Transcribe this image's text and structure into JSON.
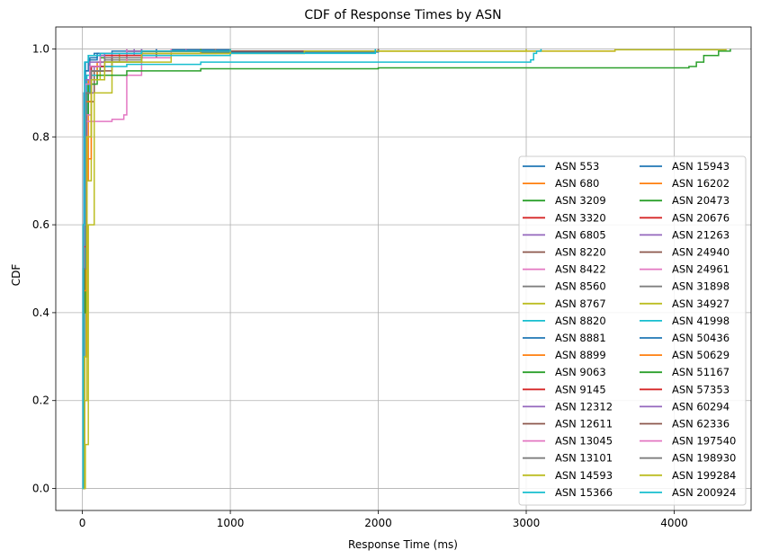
{
  "chart_data": {
    "type": "line",
    "title": "CDF of Response Times by ASN",
    "xlabel": "Response Time (ms)",
    "ylabel": "CDF",
    "xlim": [
      -180,
      4520
    ],
    "ylim": [
      -0.05,
      1.05
    ],
    "xticks": [
      0,
      1000,
      2000,
      3000,
      4000
    ],
    "xtick_labels": [
      "0",
      "1000",
      "2000",
      "3000",
      "4000"
    ],
    "yticks": [
      0.0,
      0.2,
      0.4,
      0.6,
      0.8,
      1.0
    ],
    "ytick_labels": [
      "0.0",
      "0.2",
      "0.4",
      "0.6",
      "0.8",
      "1.0"
    ],
    "grid": true,
    "legend_position": "lower-right",
    "legend_columns": 2,
    "series": [
      {
        "name": "ASN 553",
        "color": "#1f77b4",
        "x": [
          0,
          5,
          10,
          20,
          40,
          80,
          200,
          600,
          1000
        ],
        "y": [
          0,
          0.5,
          0.9,
          0.97,
          0.985,
          0.99,
          0.995,
          0.998,
          1.0
        ]
      },
      {
        "name": "ASN 680",
        "color": "#ff7f0e",
        "x": [
          0,
          10,
          25,
          40,
          80,
          200,
          500,
          3600
        ],
        "y": [
          0,
          0.3,
          0.7,
          0.93,
          0.96,
          0.985,
          0.995,
          1.0
        ]
      },
      {
        "name": "ASN 3209",
        "color": "#2ca02c",
        "x": [
          0,
          10,
          20,
          30,
          60,
          150,
          400,
          1000
        ],
        "y": [
          0,
          0.4,
          0.85,
          0.92,
          0.96,
          0.98,
          0.995,
          1.0
        ]
      },
      {
        "name": "ASN 3320",
        "color": "#d62728",
        "x": [
          0,
          8,
          20,
          50,
          120,
          300,
          900
        ],
        "y": [
          0,
          0.6,
          0.92,
          0.96,
          0.985,
          0.995,
          1.0
        ]
      },
      {
        "name": "ASN 6805",
        "color": "#9467bd",
        "x": [
          0,
          10,
          30,
          80,
          200,
          500
        ],
        "y": [
          0,
          0.5,
          0.9,
          0.96,
          0.99,
          1.0
        ]
      },
      {
        "name": "ASN 8220",
        "color": "#8c564b",
        "x": [
          0,
          8,
          20,
          60,
          150,
          400,
          1000
        ],
        "y": [
          0,
          0.6,
          0.9,
          0.96,
          0.985,
          0.995,
          1.0
        ]
      },
      {
        "name": "ASN 8422",
        "color": "#e377c2",
        "x": [
          0,
          10,
          25,
          60,
          150,
          400
        ],
        "y": [
          0,
          0.55,
          0.9,
          0.95,
          0.985,
          1.0
        ]
      },
      {
        "name": "ASN 8560",
        "color": "#7f7f7f",
        "x": [
          0,
          10,
          25,
          60,
          150,
          300,
          600
        ],
        "y": [
          0,
          0.5,
          0.9,
          0.95,
          0.98,
          0.99,
          1.0
        ]
      },
      {
        "name": "ASN 8767",
        "color": "#bcbd22",
        "x": [
          0,
          15,
          30,
          60,
          120,
          250,
          600
        ],
        "y": [
          0,
          0.2,
          0.7,
          0.93,
          0.97,
          0.99,
          1.0
        ]
      },
      {
        "name": "ASN 8820",
        "color": "#17becf",
        "x": [
          0,
          10,
          25,
          60,
          150,
          400
        ],
        "y": [
          0,
          0.5,
          0.93,
          0.96,
          0.99,
          1.0
        ]
      },
      {
        "name": "ASN 8881",
        "color": "#1f77b4",
        "x": [
          0,
          8,
          20,
          50,
          100,
          300
        ],
        "y": [
          0,
          0.6,
          0.95,
          0.98,
          0.99,
          1.0
        ]
      },
      {
        "name": "ASN 8899",
        "color": "#ff7f0e",
        "x": [
          0,
          15,
          30,
          60,
          150,
          400,
          1000
        ],
        "y": [
          0,
          0.3,
          0.75,
          0.93,
          0.97,
          0.99,
          1.0
        ]
      },
      {
        "name": "ASN 9063",
        "color": "#2ca02c",
        "x": [
          0,
          10,
          20,
          50,
          120,
          300,
          700
        ],
        "y": [
          0,
          0.5,
          0.9,
          0.95,
          0.98,
          0.995,
          1.0
        ]
      },
      {
        "name": "ASN 9145",
        "color": "#d62728",
        "x": [
          0,
          10,
          25,
          60,
          150,
          400,
          900
        ],
        "y": [
          0,
          0.5,
          0.88,
          0.95,
          0.98,
          0.995,
          1.0
        ]
      },
      {
        "name": "ASN 12312",
        "color": "#9467bd",
        "x": [
          0,
          8,
          20,
          60,
          150,
          350
        ],
        "y": [
          0,
          0.55,
          0.9,
          0.96,
          0.985,
          1.0
        ]
      },
      {
        "name": "ASN 12611",
        "color": "#8c564b",
        "x": [
          0,
          10,
          25,
          80,
          200,
          500,
          1000
        ],
        "y": [
          0,
          0.5,
          0.88,
          0.95,
          0.98,
          0.995,
          1.0
        ]
      },
      {
        "name": "ASN 13045",
        "color": "#e377c2",
        "x": [
          0,
          5,
          15,
          25,
          200,
          280,
          300,
          400,
          600
        ],
        "y": [
          0,
          0.5,
          0.8,
          0.835,
          0.84,
          0.85,
          0.94,
          0.98,
          1.0
        ]
      },
      {
        "name": "ASN 13101",
        "color": "#7f7f7f",
        "x": [
          0,
          10,
          25,
          60,
          150,
          400,
          900
        ],
        "y": [
          0,
          0.5,
          0.88,
          0.94,
          0.975,
          0.99,
          1.0
        ]
      },
      {
        "name": "ASN 14593",
        "color": "#bcbd22",
        "x": [
          0,
          20,
          40,
          80,
          200,
          600,
          1500,
          3600,
          4350
        ],
        "y": [
          0,
          0.1,
          0.6,
          0.9,
          0.97,
          0.99,
          0.995,
          0.998,
          1.0
        ]
      },
      {
        "name": "ASN 15366",
        "color": "#17becf",
        "x": [
          0,
          5,
          15,
          30,
          100,
          300,
          800,
          3030,
          3050,
          3070,
          3100
        ],
        "y": [
          0,
          0.3,
          0.85,
          0.94,
          0.96,
          0.965,
          0.97,
          0.975,
          0.99,
          0.995,
          1.0
        ]
      },
      {
        "name": "ASN 15943",
        "color": "#1f77b4",
        "x": [
          0,
          5,
          15,
          40,
          100,
          300,
          800,
          2000
        ],
        "y": [
          0,
          0.5,
          0.95,
          0.975,
          0.985,
          0.99,
          0.993,
          1.0
        ]
      },
      {
        "name": "ASN 16202",
        "color": "#ff7f0e",
        "x": [
          0,
          10,
          20,
          40,
          100,
          300,
          800
        ],
        "y": [
          0,
          0.4,
          0.85,
          0.93,
          0.97,
          0.99,
          1.0
        ]
      },
      {
        "name": "ASN 20473",
        "color": "#2ca02c",
        "x": [
          0,
          10,
          20,
          40,
          100,
          300,
          800,
          2000,
          4100,
          4150,
          4200,
          4300,
          4380
        ],
        "y": [
          0,
          0.4,
          0.85,
          0.92,
          0.94,
          0.95,
          0.955,
          0.957,
          0.96,
          0.97,
          0.985,
          0.995,
          1.0
        ]
      },
      {
        "name": "ASN 20676",
        "color": "#d62728",
        "x": [
          0,
          10,
          25,
          60,
          150,
          400,
          1000
        ],
        "y": [
          0,
          0.5,
          0.9,
          0.95,
          0.98,
          0.995,
          1.0
        ]
      },
      {
        "name": "ASN 21263",
        "color": "#9467bd",
        "x": [
          0,
          8,
          20,
          50,
          120,
          300,
          700
        ],
        "y": [
          0,
          0.55,
          0.9,
          0.96,
          0.985,
          0.995,
          1.0
        ]
      },
      {
        "name": "ASN 24940",
        "color": "#8c564b",
        "x": [
          0,
          10,
          25,
          60,
          150,
          400,
          1000,
          2000
        ],
        "y": [
          0,
          0.5,
          0.88,
          0.95,
          0.98,
          0.99,
          0.995,
          1.0
        ]
      },
      {
        "name": "ASN 24961",
        "color": "#e377c2",
        "x": [
          0,
          10,
          25,
          60,
          150,
          300,
          500
        ],
        "y": [
          0,
          0.5,
          0.85,
          0.93,
          0.97,
          0.99,
          1.0
        ]
      },
      {
        "name": "ASN 31898",
        "color": "#7f7f7f",
        "x": [
          0,
          10,
          25,
          60,
          150,
          400,
          1000
        ],
        "y": [
          0,
          0.5,
          0.9,
          0.95,
          0.98,
          0.995,
          1.0
        ]
      },
      {
        "name": "ASN 34927",
        "color": "#bcbd22",
        "x": [
          0,
          10,
          30,
          60,
          150,
          400,
          1500,
          3000
        ],
        "y": [
          0,
          0.3,
          0.8,
          0.93,
          0.97,
          0.99,
          0.995,
          1.0
        ]
      },
      {
        "name": "ASN 41998",
        "color": "#17becf",
        "x": [
          0,
          8,
          20,
          50,
          150,
          400,
          1000,
          1980
        ],
        "y": [
          0,
          0.5,
          0.9,
          0.95,
          0.97,
          0.985,
          0.99,
          1.0
        ]
      },
      {
        "name": "ASN 50436",
        "color": "#1f77b4",
        "x": [
          0,
          10,
          25,
          60,
          150,
          500
        ],
        "y": [
          0,
          0.5,
          0.9,
          0.96,
          0.99,
          1.0
        ]
      },
      {
        "name": "ASN 50629",
        "color": "#ff7f0e",
        "x": [
          0,
          10,
          25,
          60,
          150,
          400,
          1000
        ],
        "y": [
          0,
          0.45,
          0.88,
          0.95,
          0.98,
          0.995,
          1.0
        ]
      },
      {
        "name": "ASN 51167",
        "color": "#2ca02c",
        "x": [
          0,
          10,
          25,
          60,
          150,
          400,
          800
        ],
        "y": [
          0,
          0.5,
          0.9,
          0.95,
          0.98,
          0.995,
          1.0
        ]
      },
      {
        "name": "ASN 57353",
        "color": "#d62728",
        "x": [
          0,
          10,
          25,
          60,
          150,
          400,
          900
        ],
        "y": [
          0,
          0.55,
          0.9,
          0.96,
          0.985,
          0.995,
          1.0
        ]
      },
      {
        "name": "ASN 60294",
        "color": "#9467bd",
        "x": [
          0,
          8,
          20,
          50,
          150,
          400
        ],
        "y": [
          0,
          0.6,
          0.93,
          0.97,
          0.99,
          1.0
        ]
      },
      {
        "name": "ASN 62336",
        "color": "#8c564b",
        "x": [
          0,
          10,
          25,
          60,
          150,
          400,
          1000
        ],
        "y": [
          0,
          0.5,
          0.9,
          0.95,
          0.98,
          0.995,
          1.0
        ]
      },
      {
        "name": "ASN 197540",
        "color": "#e377c2",
        "x": [
          0,
          8,
          20,
          50,
          120,
          300
        ],
        "y": [
          0,
          0.6,
          0.92,
          0.96,
          0.99,
          1.0
        ]
      },
      {
        "name": "ASN 198930",
        "color": "#7f7f7f",
        "x": [
          0,
          10,
          25,
          60,
          150,
          400,
          900
        ],
        "y": [
          0,
          0.5,
          0.9,
          0.95,
          0.98,
          0.995,
          1.0
        ]
      },
      {
        "name": "ASN 199284",
        "color": "#bcbd22",
        "x": [
          0,
          15,
          30,
          60,
          150,
          400,
          1000
        ],
        "y": [
          0,
          0.3,
          0.8,
          0.93,
          0.97,
          0.99,
          1.0
        ]
      },
      {
        "name": "ASN 200924",
        "color": "#17becf",
        "x": [
          0,
          5,
          15,
          40,
          120,
          400,
          1000
        ],
        "y": [
          0,
          0.6,
          0.97,
          0.985,
          0.99,
          0.995,
          1.0
        ]
      }
    ]
  }
}
